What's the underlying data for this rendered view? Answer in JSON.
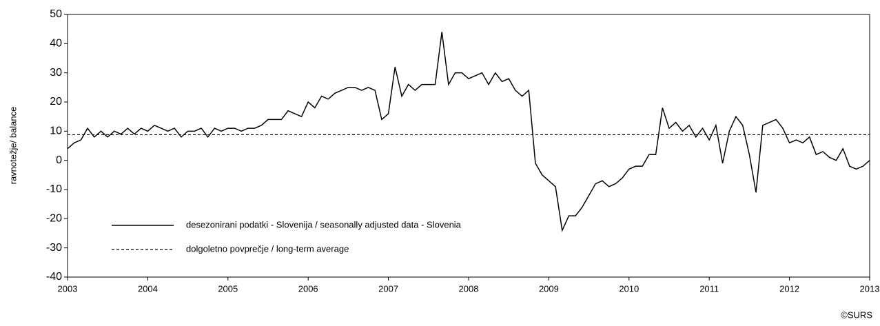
{
  "chart_data": {
    "type": "line",
    "y_label": "ravnotežje/ balance",
    "source": "©SURS",
    "xlim": [
      2003,
      2013
    ],
    "xticks": [
      2003,
      2004,
      2005,
      2006,
      2007,
      2008,
      2009,
      2010,
      2011,
      2012,
      2013
    ],
    "ylim": [
      -40,
      50
    ],
    "yticks": [
      -40,
      -30,
      -20,
      -10,
      0,
      10,
      20,
      30,
      40,
      50
    ],
    "grid": false,
    "x": [
      2003,
      2003.083,
      2003.167,
      2003.25,
      2003.333,
      2003.417,
      2003.5,
      2003.583,
      2003.667,
      2003.75,
      2003.833,
      2003.917,
      2004,
      2004.083,
      2004.167,
      2004.25,
      2004.333,
      2004.417,
      2004.5,
      2004.583,
      2004.667,
      2004.75,
      2004.833,
      2004.917,
      2005,
      2005.083,
      2005.167,
      2005.25,
      2005.333,
      2005.417,
      2005.5,
      2005.583,
      2005.667,
      2005.75,
      2005.833,
      2005.917,
      2006,
      2006.083,
      2006.167,
      2006.25,
      2006.333,
      2006.417,
      2006.5,
      2006.583,
      2006.667,
      2006.75,
      2006.833,
      2006.917,
      2007,
      2007.083,
      2007.167,
      2007.25,
      2007.333,
      2007.417,
      2007.5,
      2007.583,
      2007.667,
      2007.75,
      2007.833,
      2007.917,
      2008,
      2008.083,
      2008.167,
      2008.25,
      2008.333,
      2008.417,
      2008.5,
      2008.583,
      2008.667,
      2008.75,
      2008.833,
      2008.917,
      2009,
      2009.083,
      2009.167,
      2009.25,
      2009.333,
      2009.417,
      2009.5,
      2009.583,
      2009.667,
      2009.75,
      2009.833,
      2009.917,
      2010,
      2010.083,
      2010.167,
      2010.25,
      2010.333,
      2010.417,
      2010.5,
      2010.583,
      2010.667,
      2010.75,
      2010.833,
      2010.917,
      2011,
      2011.083,
      2011.167,
      2011.25,
      2011.333,
      2011.417,
      2011.5,
      2011.583,
      2011.667,
      2011.75,
      2011.833,
      2011.917,
      2012,
      2012.083,
      2012.167,
      2012.25,
      2012.333,
      2012.417,
      2012.5,
      2012.583,
      2012.667,
      2012.75,
      2012.833,
      2012.917,
      2013
    ],
    "series": [
      {
        "name": "desezonirani podatki - Slovenija / seasonally adjusted data - Slovenia",
        "color": "#000000",
        "dash": false,
        "values": [
          4,
          6,
          7,
          11,
          8,
          10,
          8,
          10,
          9,
          11,
          9,
          11,
          10,
          12,
          11,
          10,
          11,
          8,
          10,
          10,
          11,
          8,
          11,
          10,
          11,
          11,
          10,
          11,
          11,
          12,
          14,
          14,
          14,
          17,
          16,
          15,
          20,
          18,
          22,
          21,
          23,
          24,
          25,
          25,
          24,
          25,
          24,
          14,
          16,
          32,
          22,
          26,
          24,
          26,
          26,
          26,
          44,
          26,
          30,
          30,
          28,
          29,
          30,
          26,
          30,
          27,
          28,
          24,
          22,
          24,
          -1,
          -5,
          -7,
          -9,
          -24,
          -19,
          -19,
          -16,
          -12,
          -8,
          -7,
          -9,
          -8,
          -6,
          -3,
          -2,
          -2,
          2,
          2,
          18,
          11,
          13,
          10,
          12,
          8,
          11,
          7,
          12,
          -1,
          10,
          15,
          12,
          2,
          -11,
          12,
          13,
          14,
          11,
          6,
          7,
          6,
          8,
          2,
          3,
          1,
          0,
          4,
          -2,
          -3,
          -2,
          0
        ]
      },
      {
        "name": "dolgoletno povprečje / long-term average",
        "color": "#000000",
        "dash": true,
        "x": [
          2003,
          2013
        ],
        "values": [
          8.8,
          8.8
        ]
      }
    ]
  }
}
